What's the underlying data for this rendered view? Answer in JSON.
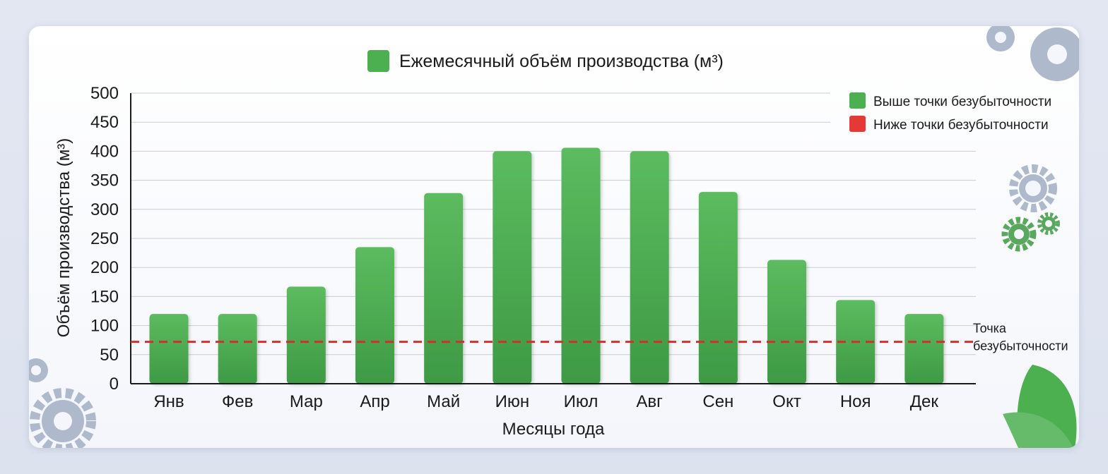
{
  "chart_data": {
    "type": "bar",
    "title": "Ежемесячный объём производства (м³)",
    "xlabel": "Месяцы года",
    "ylabel": "Объём производства (м³)",
    "categories": [
      "Янв",
      "Фев",
      "Мар",
      "Апр",
      "Май",
      "Июн",
      "Июл",
      "Авг",
      "Сен",
      "Окт",
      "Ноя",
      "Дек"
    ],
    "series": [
      {
        "name": "Ежемесячный объём производства (м³)",
        "values": [
          120,
          120,
          167,
          235,
          328,
          400,
          406,
          400,
          330,
          213,
          144,
          120
        ]
      }
    ],
    "ylim": [
      0,
      500
    ],
    "yticks": [
      0,
      50,
      100,
      150,
      200,
      250,
      300,
      350,
      400,
      450,
      500
    ],
    "grid": true,
    "legend_placement": "top-right",
    "legend": [
      {
        "label": "Выше точки безубыточности",
        "color": "#4caf50"
      },
      {
        "label": "Ниже точки безубыточности",
        "color": "#e53935"
      }
    ],
    "reference_line": {
      "value": 72,
      "label_line1": "Точка",
      "label_line2": "безубыточности",
      "color": "#d32f2f"
    },
    "colors": {
      "bar_top": "#5cbb5f",
      "bar_bottom": "#3e9a44",
      "grid": "#c9ccd4",
      "axis": "#1a1a1a"
    }
  },
  "decor": {
    "gear_color": "#aeb9cc",
    "gear_green": "#5aa85e",
    "leaf_color": "#4caf50"
  }
}
